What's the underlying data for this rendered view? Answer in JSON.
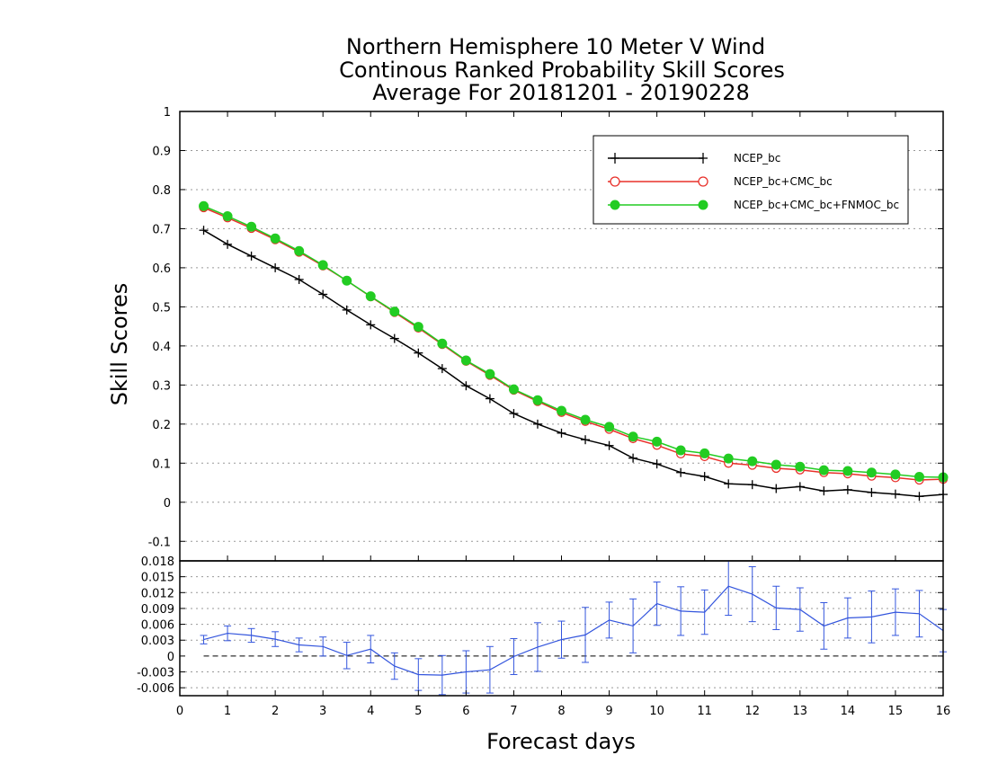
{
  "chart_data": [
    {
      "type": "line",
      "title": [
        "Northern Hemisphere 10 Meter V Wind",
        "Continous Ranked Probability Skill Scores",
        "Average For 20181201 - 20190228"
      ],
      "xlabel": "",
      "ylabel": "Skill Scores",
      "xlim": [
        0,
        16
      ],
      "ylim": [
        -0.15,
        1
      ],
      "yticks": [
        "1",
        "0.9",
        "0.8",
        "0.7",
        "0.6",
        "0.5",
        "0.4",
        "0.3",
        "0.2",
        "0.1",
        "0",
        "-0.1"
      ],
      "grid": "horizontal dotted",
      "legend_position": "top-right",
      "x": [
        0.5,
        1,
        1.5,
        2,
        2.5,
        3,
        3.5,
        4,
        4.5,
        5,
        5.5,
        6,
        6.5,
        7,
        7.5,
        8,
        8.5,
        9,
        9.5,
        10,
        10.5,
        11,
        11.5,
        12,
        12.5,
        13,
        13.5,
        14,
        14.5,
        15,
        15.5,
        16
      ],
      "series": [
        {
          "name": "NCEP_bc",
          "color": "#000000",
          "marker": "plus",
          "values": [
            0.696,
            0.66,
            0.63,
            0.6,
            0.57,
            0.532,
            0.492,
            0.454,
            0.419,
            0.382,
            0.342,
            0.298,
            0.265,
            0.227,
            0.2,
            0.177,
            0.16,
            0.145,
            0.113,
            0.098,
            0.076,
            0.066,
            0.047,
            0.045,
            0.035,
            0.04,
            0.029,
            0.032,
            0.025,
            0.021,
            0.015,
            0.02
          ]
        },
        {
          "name": "NCEP_bc+CMC_bc",
          "color": "#e8302a",
          "marker": "open-circle",
          "values": [
            0.754,
            0.728,
            0.701,
            0.672,
            0.64,
            0.605,
            0.567,
            0.526,
            0.486,
            0.446,
            0.404,
            0.361,
            0.325,
            0.287,
            0.258,
            0.23,
            0.207,
            0.187,
            0.163,
            0.146,
            0.124,
            0.117,
            0.1,
            0.095,
            0.087,
            0.083,
            0.076,
            0.073,
            0.067,
            0.063,
            0.057,
            0.059
          ]
        },
        {
          "name": "NCEP_bc+CMC_bc+FNMOC_bc",
          "color": "#22cc22",
          "marker": "filled-circle",
          "values": [
            0.758,
            0.732,
            0.705,
            0.675,
            0.643,
            0.607,
            0.567,
            0.527,
            0.488,
            0.449,
            0.406,
            0.363,
            0.328,
            0.289,
            0.261,
            0.234,
            0.211,
            0.193,
            0.168,
            0.155,
            0.133,
            0.125,
            0.112,
            0.105,
            0.096,
            0.091,
            0.082,
            0.08,
            0.076,
            0.071,
            0.065,
            0.064
          ]
        }
      ]
    },
    {
      "type": "line",
      "xlabel": "Forecast days",
      "ylabel": "",
      "xlim": [
        0,
        16
      ],
      "ylim": [
        -0.0075,
        0.018
      ],
      "xticks": [
        "0",
        "1",
        "2",
        "3",
        "4",
        "5",
        "6",
        "7",
        "8",
        "9",
        "10",
        "11",
        "12",
        "13",
        "14",
        "15",
        "16"
      ],
      "yticks": [
        "0.018",
        "0.015",
        "0.012",
        "0.009",
        "0.006",
        "0.003",
        "0",
        "-0.003",
        "-0.006"
      ],
      "grid": "horizontal dotted",
      "reference_line": 0,
      "x": [
        0.5,
        1,
        1.5,
        2,
        2.5,
        3,
        3.5,
        4,
        4.5,
        5,
        5.5,
        6,
        6.5,
        7,
        7.5,
        8,
        8.5,
        9,
        9.5,
        10,
        10.5,
        11,
        11.5,
        12,
        12.5,
        13,
        13.5,
        14,
        14.5,
        15,
        15.5,
        16
      ],
      "series": [
        {
          "color": "#3355dd",
          "values": [
            0.0031,
            0.0043,
            0.0039,
            0.0032,
            0.0021,
            0.0018,
            0.0001,
            0.0013,
            -0.0019,
            -0.0035,
            -0.0036,
            -0.003,
            -0.0026,
            -0.0001,
            0.0017,
            0.0031,
            0.004,
            0.0068,
            0.0057,
            0.0099,
            0.0085,
            0.0083,
            0.0132,
            0.0117,
            0.0091,
            0.0088,
            0.0057,
            0.0072,
            0.0074,
            0.0083,
            0.008,
            0.0048
          ],
          "error": [
            0.0008,
            0.0014,
            0.0013,
            0.0014,
            0.0013,
            0.0018,
            0.0025,
            0.0026,
            0.0025,
            0.003,
            0.0037,
            0.004,
            0.0044,
            0.0034,
            0.0046,
            0.0035,
            0.0052,
            0.0034,
            0.0051,
            0.0041,
            0.0046,
            0.0042,
            0.0055,
            0.0052,
            0.0041,
            0.0041,
            0.0044,
            0.0038,
            0.0049,
            0.0044,
            0.0044,
            0.004
          ]
        }
      ]
    }
  ]
}
